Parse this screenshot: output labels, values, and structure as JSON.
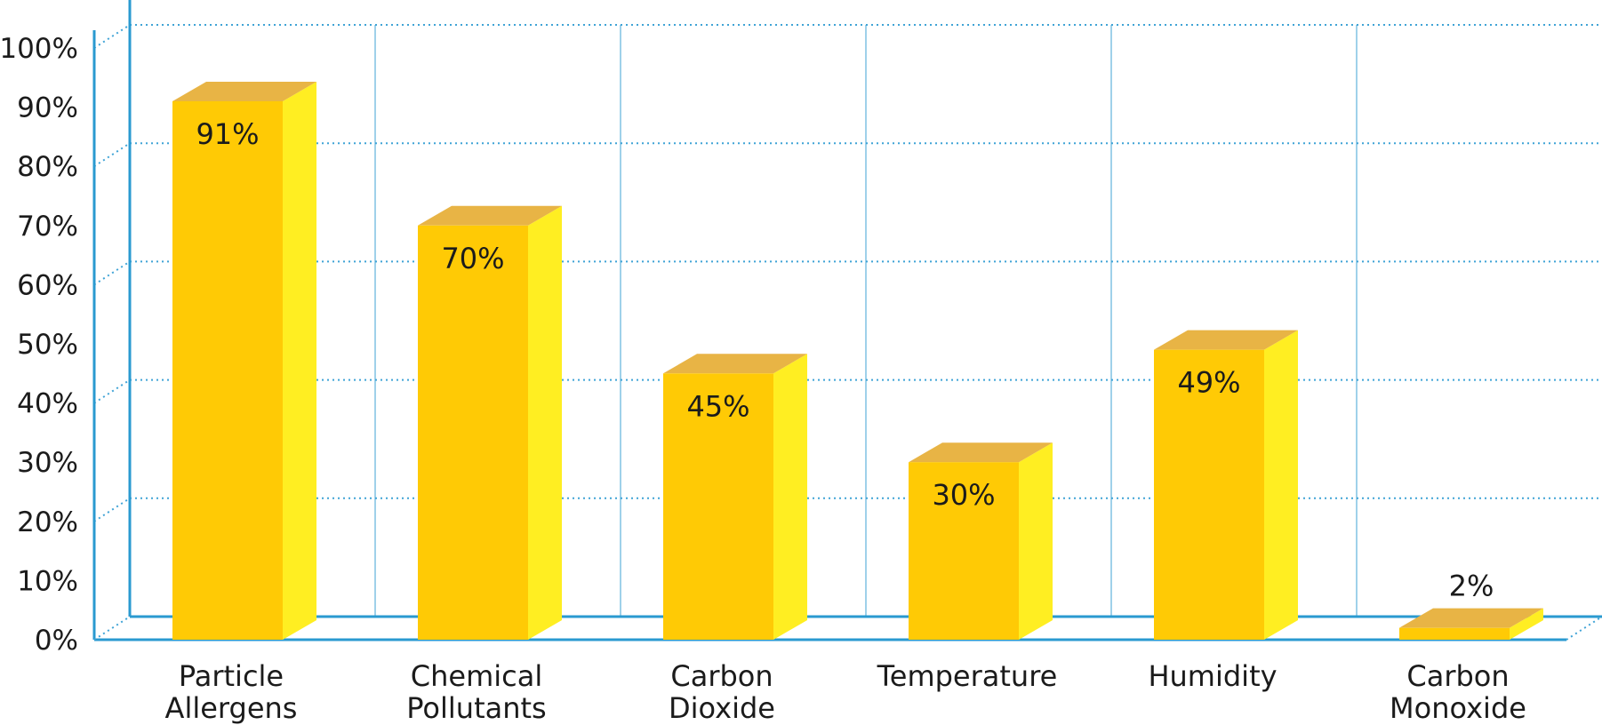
{
  "chart_data": {
    "type": "bar",
    "title": "",
    "xlabel": "",
    "ylabel": "",
    "categories": [
      [
        "Particle",
        "Allergens"
      ],
      [
        "Chemical",
        "Pollutants"
      ],
      [
        "Carbon",
        "Dioxide"
      ],
      [
        "Temperature"
      ],
      [
        "Humidity"
      ],
      [
        "Carbon",
        "Monoxide"
      ]
    ],
    "values": [
      91,
      70,
      45,
      30,
      49,
      2
    ],
    "data_labels": [
      "91%",
      "70%",
      "45%",
      "30%",
      "49%",
      "2%"
    ],
    "ylim": [
      0,
      100
    ],
    "y_ticks": [
      "0%",
      "10%",
      "20%",
      "30%",
      "40%",
      "50%",
      "60%",
      "70%",
      "80%",
      "90%",
      "100%"
    ],
    "grid": true,
    "legend": "none",
    "style": "3d-bar",
    "colors": {
      "bar_front": "#FFCA05",
      "bar_side": "#FFEE22",
      "bar_top": "#E8B445",
      "axis": "#2A9AD0",
      "gridline": "#3FA3D6",
      "text": "#1B1B1B"
    }
  }
}
